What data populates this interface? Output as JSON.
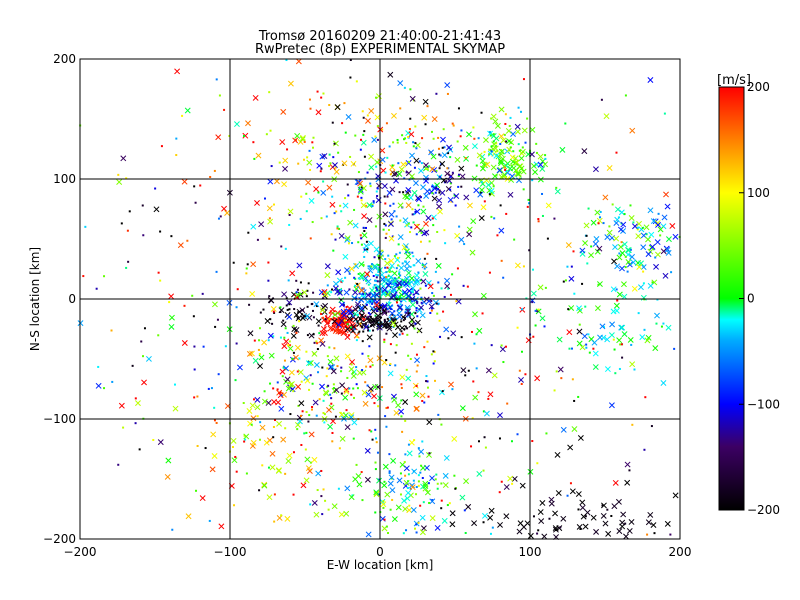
{
  "chart_data": {
    "type": "scatter",
    "title": "Tromsø 20160209 21:40:00-21:41:43",
    "subtitle": "RwPretec (8p) EXPERIMENTAL SKYMAP",
    "xlabel": "E-W location [km]",
    "ylabel": "N-S location [km]",
    "xlim": [
      -200,
      200
    ],
    "ylim": [
      -200,
      200
    ],
    "x_ticks": [
      -200,
      -100,
      0,
      100,
      200
    ],
    "y_ticks": [
      -200,
      -100,
      0,
      100,
      200
    ],
    "x_tick_labels": [
      "−200",
      "−100",
      "0",
      "100",
      "200"
    ],
    "y_tick_labels": [
      "−200",
      "−100",
      "0",
      "100",
      "200"
    ],
    "grid": true,
    "marker_types": [
      "cross",
      "dot"
    ],
    "colorbar": {
      "unit_label": "[m/s]",
      "range": [
        -200,
        200
      ],
      "ticks": [
        200,
        100,
        0,
        -100,
        -200
      ],
      "tick_labels": [
        "200",
        "100",
        "0",
        "−100",
        "−200"
      ],
      "colormap_stops": [
        {
          "value": -200,
          "color": "#000000"
        },
        {
          "value": -140,
          "color": "#3c0064"
        },
        {
          "value": -100,
          "color": "#0000ff"
        },
        {
          "value": -40,
          "color": "#00aaff"
        },
        {
          "value": -20,
          "color": "#00ffff"
        },
        {
          "value": 0,
          "color": "#00ff00"
        },
        {
          "value": 100,
          "color": "#ffff00"
        },
        {
          "value": 150,
          "color": "#ff8000"
        },
        {
          "value": 200,
          "color": "#ff0000"
        }
      ]
    },
    "clusters": [
      {
        "x": 5,
        "y": 10,
        "sx": 14,
        "sy": 14,
        "n": 220,
        "vel": -25,
        "vspread": 15,
        "cross_frac": 0.45
      },
      {
        "x": -25,
        "y": -20,
        "sx": 6,
        "sy": 5,
        "n": 90,
        "vel": 195,
        "vspread": 8,
        "cross_frac": 0.6
      },
      {
        "x": 0,
        "y": -20,
        "sx": 12,
        "sy": 6,
        "n": 90,
        "vel": -195,
        "vspread": 10,
        "cross_frac": 0.5
      },
      {
        "x": -55,
        "y": -10,
        "sx": 14,
        "sy": 8,
        "n": 60,
        "vel": -190,
        "vspread": 15,
        "cross_frac": 0.5
      },
      {
        "x": 5,
        "y": 0,
        "sx": 20,
        "sy": 10,
        "n": 110,
        "vel": -100,
        "vspread": 25,
        "cross_frac": 0.5
      },
      {
        "x": 85,
        "y": 115,
        "sx": 12,
        "sy": 16,
        "n": 120,
        "vel": 20,
        "vspread": 35,
        "cross_frac": 0.7
      },
      {
        "x": 45,
        "y": 120,
        "sx": 30,
        "sy": 20,
        "n": 110,
        "vel": -30,
        "vspread": 140,
        "cross_frac": 0.3
      },
      {
        "x": 30,
        "y": 90,
        "sx": 25,
        "sy": 15,
        "n": 80,
        "vel": -110,
        "vspread": 40,
        "cross_frac": 0.55
      },
      {
        "x": 170,
        "y": 50,
        "sx": 22,
        "sy": 18,
        "n": 110,
        "vel": -30,
        "vspread": 50,
        "cross_frac": 0.6
      },
      {
        "x": 160,
        "y": -20,
        "sx": 25,
        "sy": 20,
        "n": 70,
        "vel": -5,
        "vspread": 25,
        "cross_frac": 0.7
      },
      {
        "x": -30,
        "y": -60,
        "sx": 35,
        "sy": 30,
        "n": 240,
        "vel": 40,
        "vspread": 110,
        "cross_frac": 0.5
      },
      {
        "x": -70,
        "y": -140,
        "sx": 25,
        "sy": 25,
        "n": 70,
        "vel": 130,
        "vspread": 60,
        "cross_frac": 0.6
      },
      {
        "x": 20,
        "y": -160,
        "sx": 25,
        "sy": 20,
        "n": 130,
        "vel": 0,
        "vspread": 60,
        "cross_frac": 0.5
      },
      {
        "x": 130,
        "y": -185,
        "sx": 45,
        "sy": 12,
        "n": 90,
        "vel": -195,
        "vspread": 15,
        "cross_frac": 0.75
      },
      {
        "x": -30,
        "y": 120,
        "sx": 40,
        "sy": 30,
        "n": 90,
        "vel": 120,
        "vspread": 70,
        "cross_frac": 0.6
      },
      {
        "x": 0,
        "y": 60,
        "sx": 20,
        "sy": 30,
        "n": 120,
        "vel": -20,
        "vspread": 90,
        "cross_frac": 0.3
      },
      {
        "x": 0,
        "y": 0,
        "sx": 110,
        "sy": 110,
        "n": 700,
        "vel": 0,
        "vspread": 170,
        "cross_frac": 0.3
      }
    ]
  }
}
